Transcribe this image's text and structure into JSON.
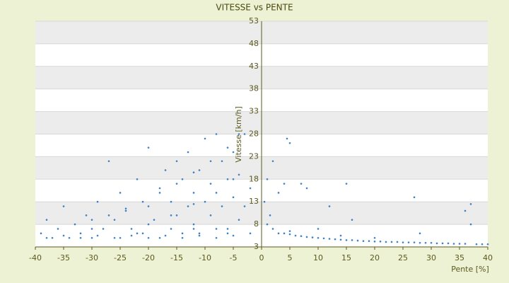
{
  "chart_data": {
    "type": "scatter",
    "title": "VITESSE vs PENTE",
    "x_label": "Pente [%]",
    "y_label": "Vitesse [km/h]",
    "xlim": [
      -40,
      40
    ],
    "xticks": [
      -40,
      -35,
      -30,
      -25,
      -20,
      -15,
      -10,
      -5,
      0,
      5,
      10,
      15,
      20,
      25,
      30,
      35,
      40
    ],
    "ylim": [
      3,
      53
    ],
    "yticks": [
      3,
      8,
      13,
      18,
      23,
      28,
      33,
      38,
      43,
      48,
      53
    ],
    "grid": true,
    "series": [
      {
        "name": "Vitesse",
        "color": "#3b82c8",
        "x": [
          -39,
          -38,
          -37,
          -36,
          -35,
          -34,
          -33,
          -32,
          -31,
          -30,
          -29,
          -28,
          -27,
          -26,
          -25,
          -25,
          -24,
          -23,
          -22,
          -21,
          -20,
          -20,
          -19,
          -18,
          -18,
          -17,
          -16,
          -16,
          -15,
          -15,
          -14,
          -14,
          -13,
          -13,
          -12,
          -12,
          -11,
          -11,
          -10,
          -10,
          -9,
          -9,
          -8,
          -8,
          -7,
          -7,
          -6,
          -6,
          -5,
          -5,
          -4,
          -4,
          -3,
          -3,
          -2,
          -2,
          -38,
          -35,
          -32,
          -29,
          -26,
          -23,
          -20,
          -17,
          -14,
          -11,
          -8,
          -5,
          -30,
          -22,
          -12,
          -6,
          -30,
          -27,
          -24,
          -21,
          -18,
          -15,
          -12,
          -9,
          -6,
          -4,
          -20,
          -16,
          -12,
          -8,
          -5,
          0.5,
          1,
          1,
          1.5,
          2,
          2,
          3,
          3,
          4,
          4,
          4.5,
          5,
          5,
          6,
          7,
          7,
          8,
          8,
          9,
          10,
          11,
          12,
          12,
          13,
          14,
          15,
          15,
          16,
          16,
          17,
          18,
          19,
          20,
          21,
          22,
          23,
          24,
          25,
          26,
          27,
          27,
          28,
          29,
          30,
          31,
          32,
          33,
          34,
          35,
          36,
          36,
          37,
          37,
          38,
          39,
          40,
          5,
          10,
          20,
          28,
          14
        ],
        "y": [
          6,
          9,
          5,
          7,
          12,
          5,
          8,
          6,
          10,
          5,
          13,
          7,
          22,
          9,
          5,
          15,
          11,
          7,
          18,
          6,
          12,
          25,
          9,
          16,
          5,
          20,
          7,
          13,
          22,
          10,
          6,
          18,
          24,
          12,
          8,
          15,
          20,
          6,
          27,
          13,
          10,
          17,
          28,
          7,
          22,
          12,
          18,
          6,
          14,
          24,
          9,
          19,
          28,
          12,
          16,
          6,
          5,
          5.5,
          5,
          5.5,
          5,
          5.5,
          5,
          5.5,
          5,
          5.5,
          5,
          5.5,
          7,
          6,
          7,
          7,
          9,
          10,
          11.5,
          13,
          15,
          17,
          19.5,
          22,
          25,
          28,
          8,
          10,
          12.5,
          15,
          18,
          13,
          8,
          18,
          10,
          22,
          7,
          6,
          15,
          6,
          17,
          27,
          26,
          5.8,
          5.5,
          5.4,
          17,
          5.2,
          16,
          5.1,
          5,
          4.9,
          12,
          4.8,
          4.7,
          4.6,
          4.5,
          17,
          9,
          4.5,
          4.4,
          4.3,
          4.3,
          4.2,
          4.2,
          4.1,
          4.1,
          4.1,
          4,
          4,
          14,
          4,
          3.9,
          3.9,
          3.9,
          3.8,
          3.8,
          3.8,
          3.7,
          3.7,
          11,
          3.7,
          12.5,
          8,
          3.6,
          3.6,
          3.6,
          6.5,
          7,
          5,
          6,
          5.5
        ]
      }
    ]
  }
}
